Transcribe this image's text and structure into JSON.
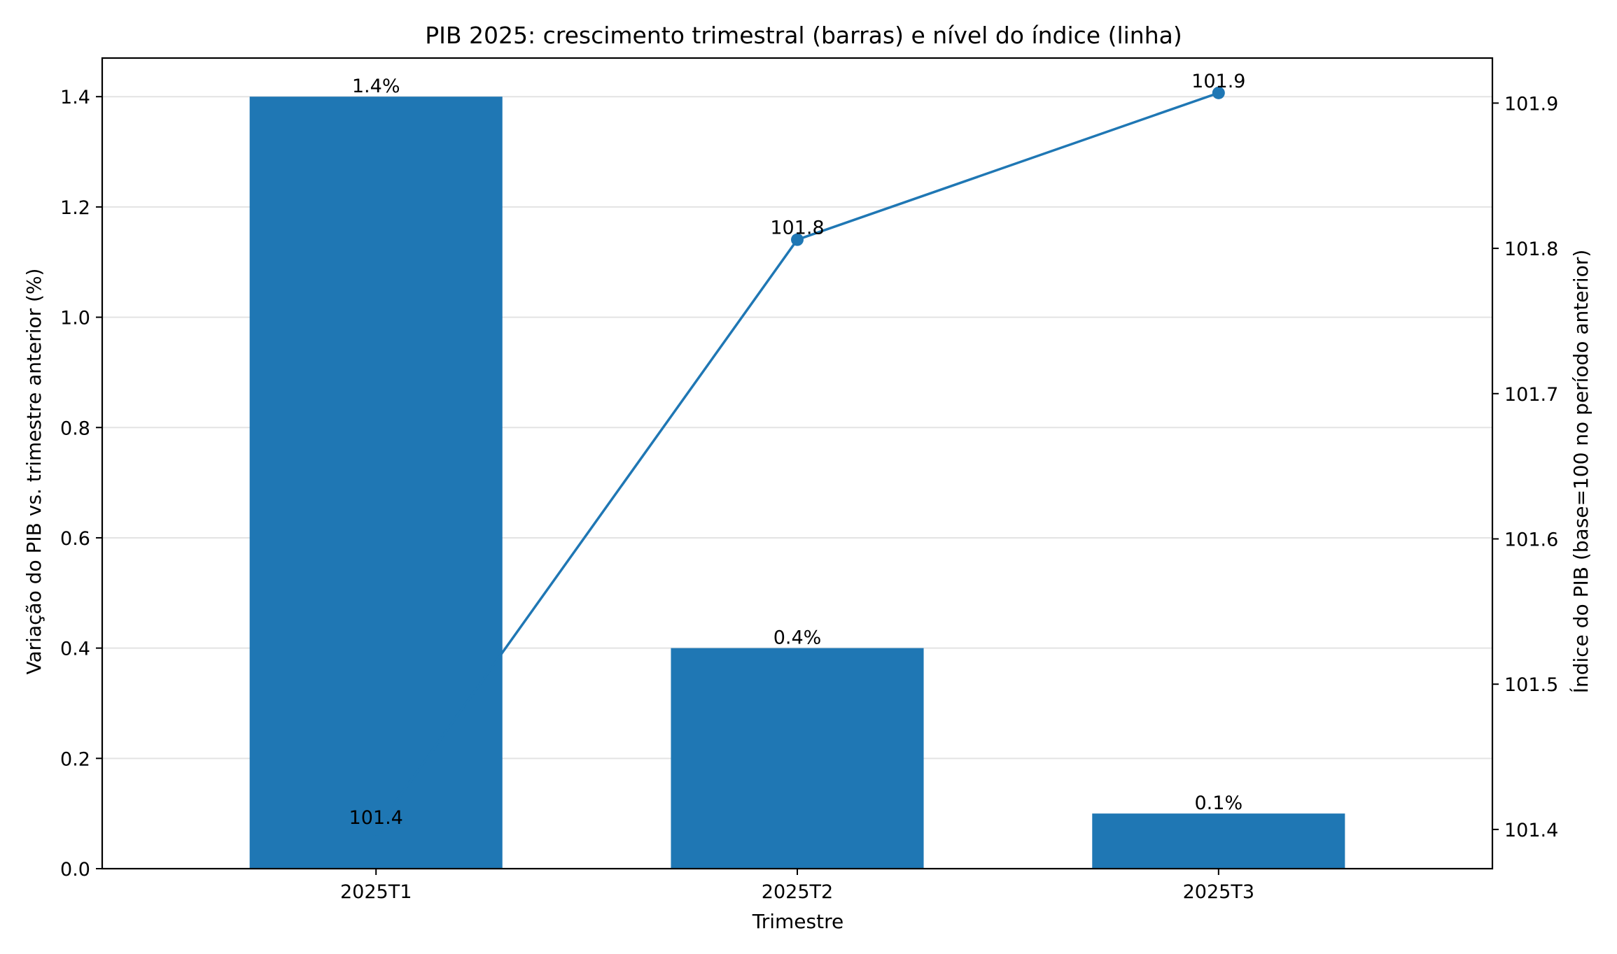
{
  "chart_data": {
    "type": "bar",
    "title": "PIB 2025: crescimento trimestral (barras) e nível do índice (linha)",
    "xlabel": "Trimestre",
    "ylabel": "Variação do PIB vs. trimestre anterior (%)",
    "y2label": "Índice do PIB (base=100 no período anterior)",
    "categories": [
      "2025T1",
      "2025T2",
      "2025T3"
    ],
    "series": [
      {
        "axis": "left",
        "kind": "bar",
        "values": [
          1.4,
          0.4,
          0.1
        ],
        "labels": [
          "1.4%",
          "0.4%",
          "0.1%"
        ],
        "color": "#1f77b4"
      },
      {
        "axis": "right",
        "kind": "line",
        "values": [
          101.4,
          101.806,
          101.907
        ],
        "labels": [
          "101.4",
          "101.8",
          "101.9"
        ],
        "color": "#1f77b4"
      }
    ],
    "ylim": [
      0,
      1.47
    ],
    "y2lim": [
      101.373,
      101.931
    ],
    "yticks": [
      "0.0",
      "0.2",
      "0.4",
      "0.6",
      "0.8",
      "1.0",
      "1.2",
      "1.4"
    ],
    "y2ticks": [
      "101.4",
      "101.5",
      "101.6",
      "101.7",
      "101.8",
      "101.9"
    ],
    "grid": "horizontal",
    "legend": "none"
  }
}
